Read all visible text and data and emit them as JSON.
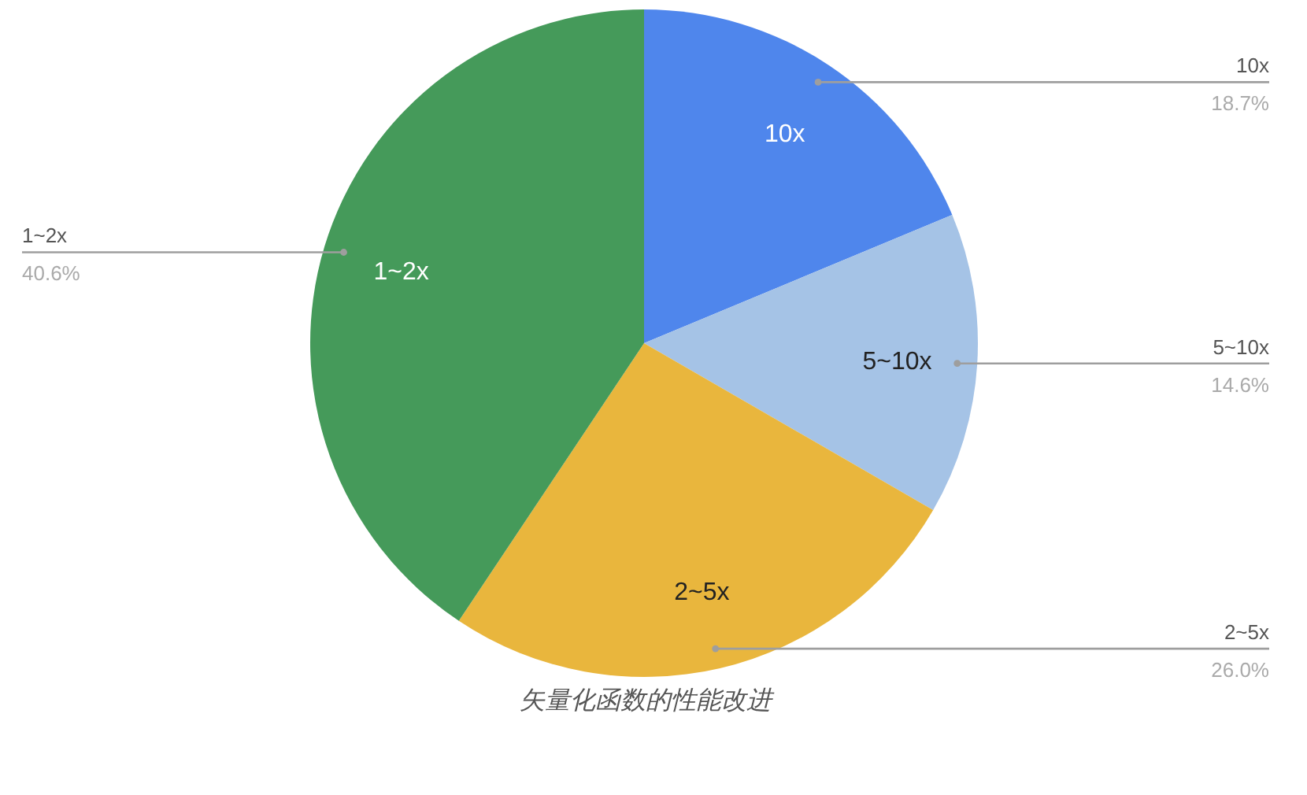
{
  "chart_data": {
    "type": "pie",
    "title": "矢量化函数的性能改进",
    "categories": [
      "10x",
      "5~10x",
      "2~5x",
      "1~2x"
    ],
    "values": [
      18.7,
      14.6,
      26.0,
      40.6
    ],
    "colors": [
      "#4f86ec",
      "#a5c3e6",
      "#e9b63d",
      "#459a5a"
    ],
    "value_labels": [
      "18.7%",
      "14.6%",
      "26.0%",
      "40.6%"
    ]
  }
}
